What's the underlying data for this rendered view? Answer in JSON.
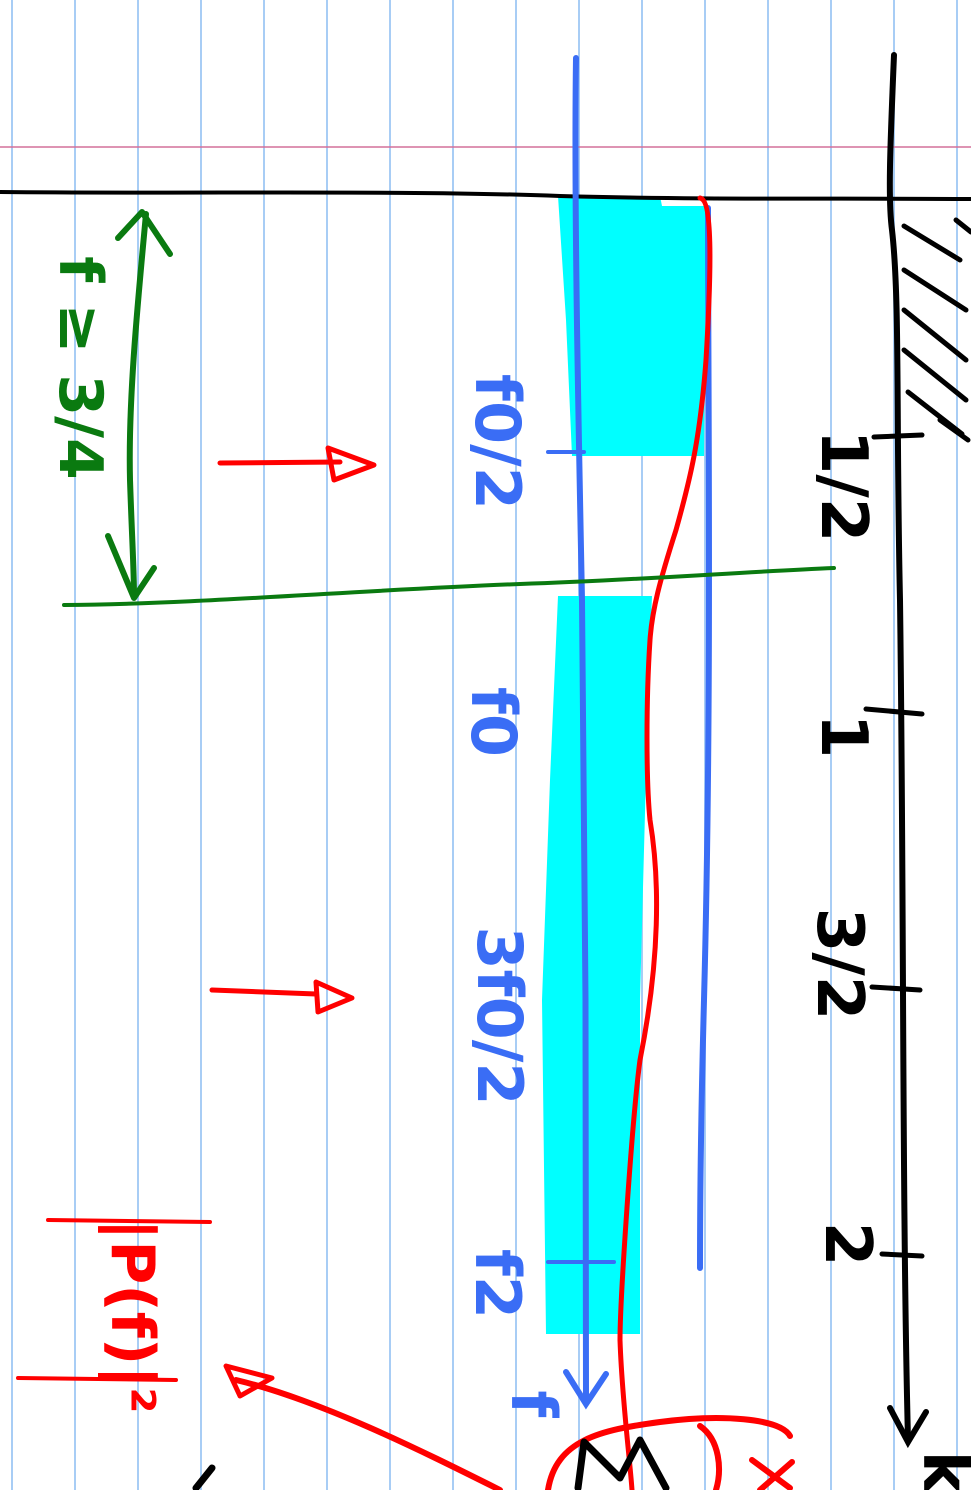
{
  "colors": {
    "paper": "#ffffff",
    "rule_lines": "#a8cdf5",
    "margin_line": "#d4709a",
    "ink_black": "#000000",
    "ink_blue": "#3a6df5",
    "ink_red": "#ff0000",
    "ink_green": "#0a7a10",
    "highlight": "#00ffff"
  },
  "axis": {
    "ticks": [
      "1/2",
      "1",
      "3/2",
      "2"
    ],
    "end_label": "k"
  },
  "blue_labels": {
    "f0_half": "f0/2",
    "f0": "f0",
    "f0_three_half": "3f0/2",
    "f2": "f2",
    "f_end": "f"
  },
  "green_label": "f ≥ 3/4",
  "red_label": "|P(f)|²"
}
